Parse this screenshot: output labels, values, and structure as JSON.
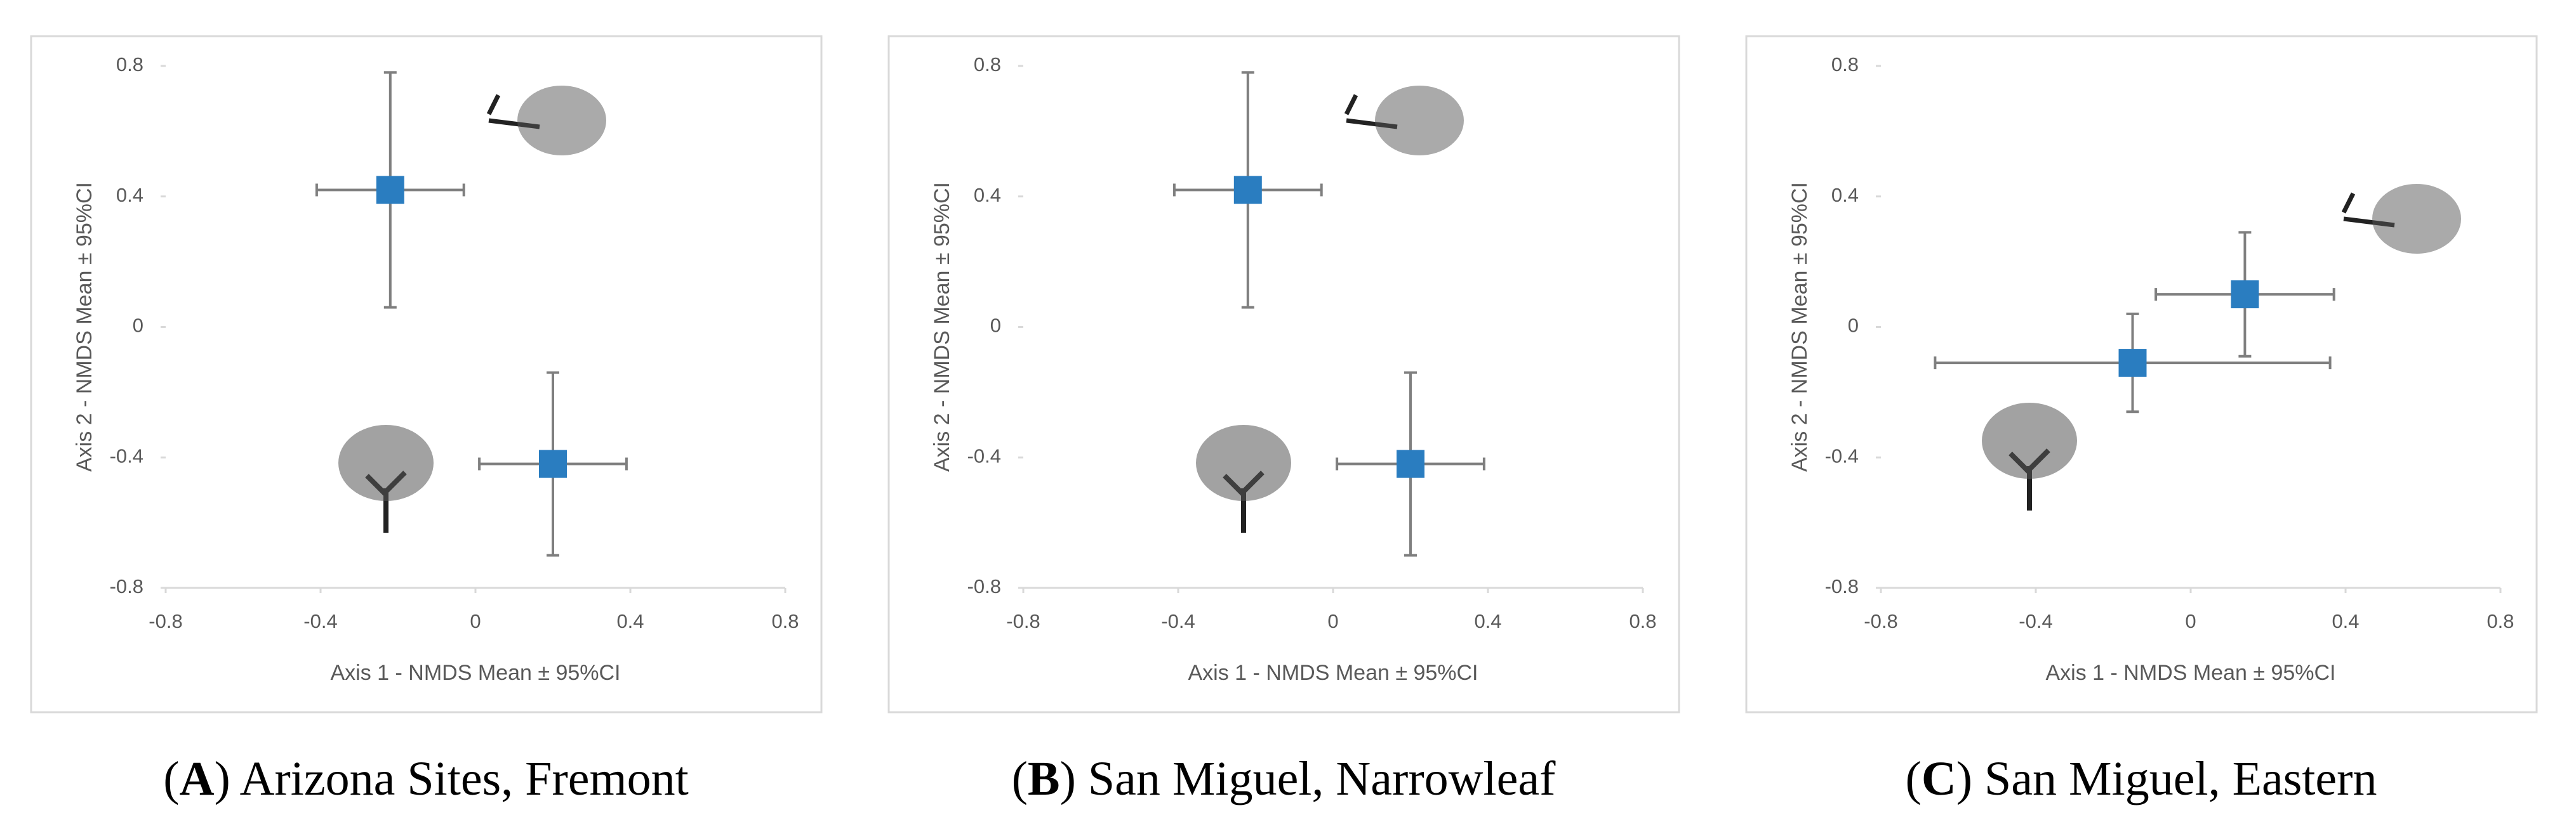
{
  "chart_data": [
    {
      "type": "scatter",
      "caption": [
        "(",
        "A",
        ") Arizona Sites, Fremont"
      ],
      "xlabel": "Axis 1 - NMDS Mean ± 95%CI",
      "ylabel": "Axis 2 - NMDS Mean ± 95%CI",
      "xlim": [
        -0.8,
        0.8
      ],
      "ylim": [
        -0.8,
        0.8
      ],
      "xticks": [
        -0.8,
        -0.4,
        0,
        0.4,
        0.8
      ],
      "yticks": [
        -0.8,
        -0.4,
        0,
        0.4,
        0.8
      ],
      "series": [
        {
          "color": "#2a7dc0",
          "x": [
            -0.22,
            0.2
          ],
          "values": [
            0.42,
            -0.42
          ],
          "xerr": [
            0.19,
            0.19
          ],
          "yerr": [
            0.36,
            0.28
          ]
        }
      ]
    },
    {
      "type": "scatter",
      "caption": [
        "(",
        "B",
        ") San Miguel, Narrowleaf"
      ],
      "xlabel": "Axis 1 - NMDS Mean ± 95%CI",
      "ylabel": "Axis 2 - NMDS Mean ± 95%CI",
      "xlim": [
        -0.8,
        0.8
      ],
      "ylim": [
        -0.8,
        0.8
      ],
      "xticks": [
        -0.8,
        -0.4,
        0,
        0.4,
        0.8
      ],
      "yticks": [
        -0.8,
        -0.4,
        0,
        0.4,
        0.8
      ],
      "series": [
        {
          "color": "#2a7dc0",
          "x": [
            -0.22,
            0.2
          ],
          "values": [
            0.42,
            -0.42
          ],
          "xerr": [
            0.19,
            0.19
          ],
          "yerr": [
            0.36,
            0.28
          ]
        }
      ]
    },
    {
      "type": "scatter",
      "caption": [
        "(",
        "C",
        ") San Miguel, Eastern"
      ],
      "xlabel": "Axis 1 - NMDS Mean ± 95%CI",
      "ylabel": "Axis 2 - NMDS Mean ± 95%CI",
      "xlim": [
        -0.8,
        0.8
      ],
      "ylim": [
        -0.8,
        0.8
      ],
      "xticks": [
        -0.8,
        -0.4,
        0,
        0.4,
        0.8
      ],
      "yticks": [
        -0.8,
        -0.4,
        0,
        0.4,
        0.8
      ],
      "series": [
        {
          "color": "#2a7dc0",
          "x": [
            -0.15,
            0.14
          ],
          "values": [
            -0.11,
            0.1
          ],
          "xerr": [
            0.51,
            0.23
          ],
          "yerr": [
            0.15,
            0.19
          ]
        }
      ]
    }
  ]
}
